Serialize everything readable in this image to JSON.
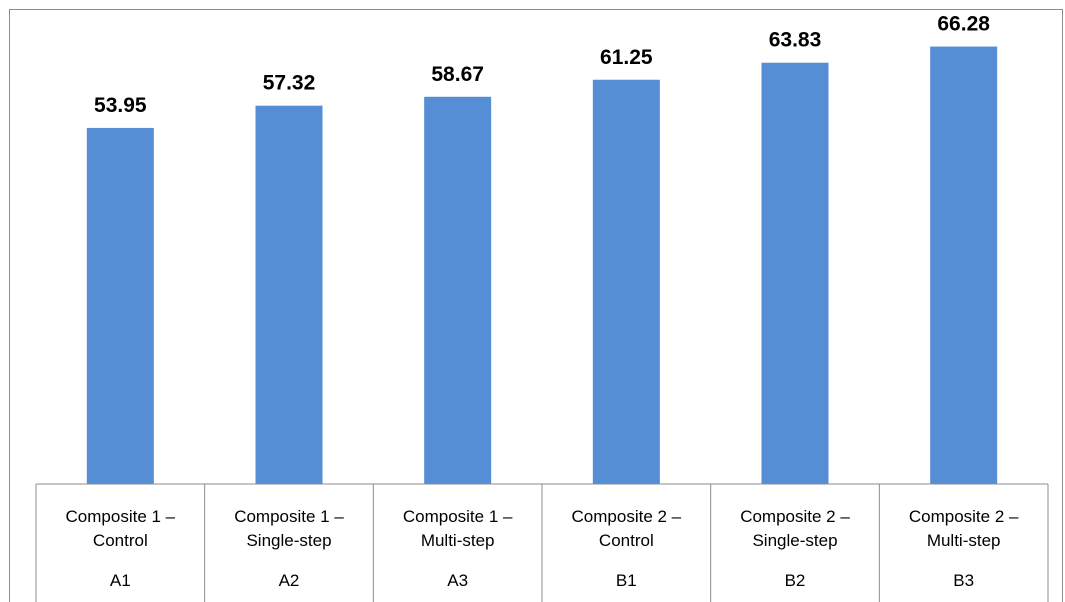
{
  "chart_data": {
    "type": "bar",
    "categories": [
      {
        "line1": "Composite 1 –",
        "line2": "Control",
        "code": "A1"
      },
      {
        "line1": "Composite 1 –",
        "line2": "Single-step",
        "code": "A2"
      },
      {
        "line1": "Composite 1 –",
        "line2": "Multi-step",
        "code": "A3"
      },
      {
        "line1": "Composite 2 –",
        "line2": "Control",
        "code": "B1"
      },
      {
        "line1": "Composite 2 –",
        "line2": "Single-step",
        "code": "B2"
      },
      {
        "line1": "Composite 2 –",
        "line2": "Multi-step",
        "code": "B3"
      }
    ],
    "values": [
      53.95,
      57.32,
      58.67,
      61.25,
      63.83,
      66.28
    ],
    "value_labels": [
      "53.95",
      "57.32",
      "58.67",
      "61.25",
      "63.83",
      "66.28"
    ],
    "ylim": [
      0,
      70
    ],
    "bar_color": "#558ED5",
    "grid": false,
    "legend": "none",
    "title": "",
    "xlabel": "",
    "ylabel": ""
  }
}
